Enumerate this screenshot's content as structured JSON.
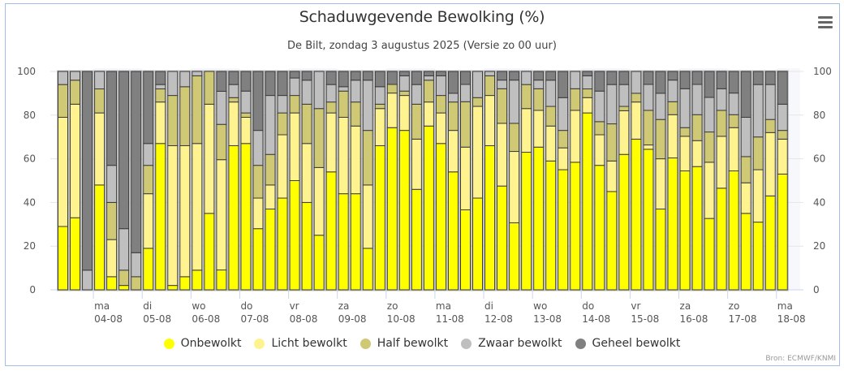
{
  "header": {
    "title": "Schaduwgevende Bewolking (%)",
    "subtitle": "De Bilt, zondag 3 augustus 2025 (Versie zo 00 uur)",
    "menu_icon": "hamburger-menu-icon"
  },
  "credits": "Bron: ECMWF/KNMI",
  "chart_data": {
    "type": "bar",
    "stacked": true,
    "stacking": "percent",
    "title": "Schaduwgevende Bewolking (%)",
    "subtitle": "De Bilt, zondag 3 augustus 2025 (Versie zo 00 uur)",
    "xlabel": "",
    "ylabel": "",
    "ylim": [
      0,
      100
    ],
    "yticks": [
      "0",
      "20",
      "40",
      "60",
      "80",
      "100"
    ],
    "y_axis_both_sides": true,
    "grid": true,
    "legend_position": "bottom",
    "time_step": "6 uur",
    "first_bar": "zo 03-08 06 uur",
    "last_bar": "ma 18-08 00 uur",
    "x_ticks": [
      {
        "day": "ma",
        "date": "04-08"
      },
      {
        "day": "di",
        "date": "05-08"
      },
      {
        "day": "wo",
        "date": "06-08"
      },
      {
        "day": "do",
        "date": "07-08"
      },
      {
        "day": "vr",
        "date": "08-08"
      },
      {
        "day": "za",
        "date": "09-08"
      },
      {
        "day": "zo",
        "date": "10-08"
      },
      {
        "day": "ma",
        "date": "11-08"
      },
      {
        "day": "di",
        "date": "12-08"
      },
      {
        "day": "wo",
        "date": "13-08"
      },
      {
        "day": "do",
        "date": "14-08"
      },
      {
        "day": "vr",
        "date": "15-08"
      },
      {
        "day": "za",
        "date": "16-08"
      },
      {
        "day": "zo",
        "date": "17-08"
      },
      {
        "day": "ma",
        "date": "18-08"
      }
    ],
    "series": [
      {
        "name": "Onbewolkt",
        "color": "#ffff00",
        "values": [
          29,
          33,
          0,
          48,
          6,
          2,
          0,
          19,
          67,
          2,
          6,
          9,
          35,
          9,
          66,
          67,
          28,
          37,
          42,
          50,
          40,
          25,
          54,
          44,
          44,
          19,
          66,
          75,
          73,
          46,
          75,
          67,
          54,
          37,
          42,
          66,
          48,
          31,
          63,
          66,
          59,
          55,
          59,
          81,
          57,
          45,
          62,
          69,
          65,
          37,
          61,
          55,
          57,
          33,
          47,
          55,
          35,
          31,
          43,
          53
        ]
      },
      {
        "name": "Licht bewolkt",
        "color": "#fff38f",
        "values": [
          50,
          52,
          0,
          33,
          17,
          0,
          0,
          25,
          19,
          64,
          60,
          58,
          50,
          50,
          20,
          12,
          14,
          11,
          29,
          31,
          27,
          31,
          27,
          35,
          31,
          29,
          17,
          16,
          16,
          23,
          11,
          14,
          19,
          29,
          42,
          23,
          29,
          33,
          20,
          17,
          16,
          10,
          24,
          7,
          14,
          14,
          20,
          17,
          2,
          23,
          20,
          16,
          12,
          26,
          24,
          20,
          14,
          24,
          29,
          16
        ]
      },
      {
        "name": "Half bewolkt",
        "color": "#cfc874",
        "values": [
          15,
          11,
          0,
          11,
          17,
          7,
          6,
          13,
          6,
          23,
          27,
          31,
          15,
          16,
          2,
          2,
          15,
          14,
          10,
          8,
          18,
          27,
          5,
          12,
          11,
          25,
          2,
          4,
          2,
          16,
          10,
          8,
          13,
          21,
          4,
          9,
          16,
          13,
          11,
          10,
          9,
          8,
          10,
          4,
          6,
          17,
          2,
          4,
          16,
          18,
          6,
          4,
          12,
          14,
          12,
          6,
          12,
          15,
          6,
          4
        ]
      },
      {
        "name": "Zwaar bewolkt",
        "color": "#bfbfbf",
        "values": [
          6,
          4,
          9,
          8,
          17,
          19,
          11,
          10,
          2,
          11,
          7,
          2,
          0,
          15,
          6,
          10,
          16,
          27,
          8,
          8,
          11,
          17,
          8,
          2,
          10,
          23,
          8,
          0,
          7,
          9,
          2,
          9,
          4,
          8,
          12,
          2,
          4,
          20,
          6,
          4,
          12,
          15,
          8,
          6,
          14,
          18,
          10,
          10,
          12,
          12,
          10,
          18,
          14,
          16,
          10,
          10,
          18,
          24,
          16,
          12
        ]
      },
      {
        "name": "Geheel bewolkt",
        "color": "#808080",
        "values": [
          0,
          0,
          91,
          0,
          43,
          72,
          83,
          33,
          6,
          0,
          0,
          0,
          0,
          9,
          6,
          9,
          27,
          11,
          11,
          3,
          4,
          0,
          6,
          7,
          4,
          4,
          7,
          6,
          2,
          6,
          2,
          2,
          10,
          6,
          0,
          0,
          4,
          4,
          0,
          4,
          4,
          12,
          0,
          2,
          9,
          6,
          6,
          0,
          6,
          10,
          4,
          8,
          6,
          12,
          8,
          10,
          21,
          6,
          6,
          15
        ]
      }
    ]
  }
}
